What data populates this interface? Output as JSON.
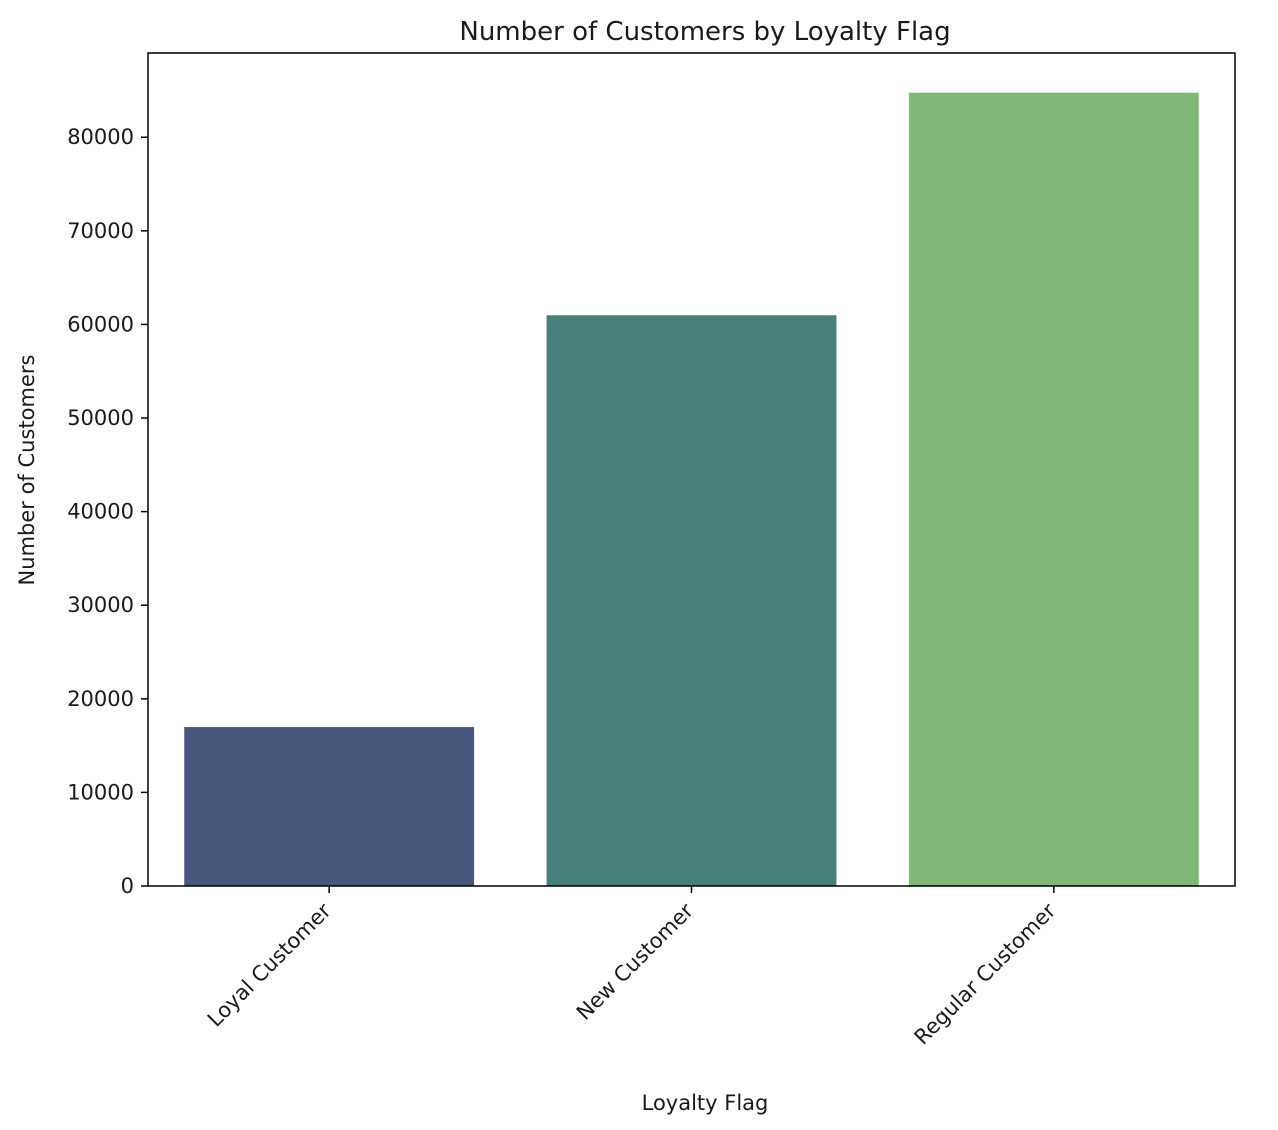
{
  "chart_data": {
    "type": "bar",
    "title": "Number of Customers by Loyalty Flag",
    "xlabel": "Loyalty Flag",
    "ylabel": "Number of Customers",
    "categories": [
      "Loyal Customer",
      "New Customer",
      "Regular Customer"
    ],
    "values": [
      16980,
      60980,
      84760
    ],
    "colors": [
      "#48577e",
      "#47807b",
      "#80b976"
    ],
    "ylim": [
      0,
      89000
    ],
    "yticks": [
      0,
      10000,
      20000,
      30000,
      40000,
      50000,
      60000,
      70000,
      80000
    ],
    "grid": false,
    "legend": "none"
  }
}
